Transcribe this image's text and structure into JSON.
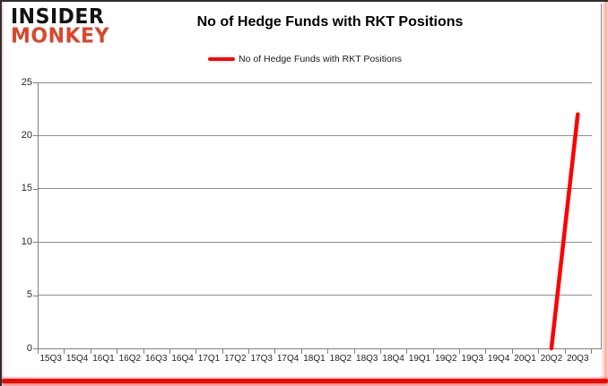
{
  "brand": {
    "line1": "INSIDER",
    "line2": "MONKEY",
    "color": "#d9472e"
  },
  "header": {
    "title": "No of Hedge Funds with RKT Positions"
  },
  "legend": {
    "label": "No of Hedge Funds with RKT Positions",
    "marker_color": "#fe0000"
  },
  "chart_data": {
    "type": "line",
    "title": "No of Hedge Funds with RKT Positions",
    "categories": [
      "15Q3",
      "15Q4",
      "16Q1",
      "16Q2",
      "16Q3",
      "16Q4",
      "17Q1",
      "17Q2",
      "17Q3",
      "17Q4",
      "18Q1",
      "18Q2",
      "18Q3",
      "18Q4",
      "19Q1",
      "19Q2",
      "19Q3",
      "19Q4",
      "20Q1",
      "20Q2",
      "20Q3"
    ],
    "series": [
      {
        "name": "No of Hedge Funds with RKT Positions",
        "color": "#fe0000",
        "values": [
          null,
          null,
          null,
          null,
          null,
          null,
          null,
          null,
          null,
          null,
          null,
          null,
          null,
          null,
          null,
          null,
          null,
          null,
          null,
          0,
          22
        ]
      }
    ],
    "xlabel": "",
    "ylabel": "",
    "ylim": [
      0,
      25
    ],
    "yticks": [
      0,
      5,
      10,
      15,
      20,
      25
    ],
    "grid": true,
    "legend_position": "top-center"
  },
  "colors": {
    "grid": "#8e8e8e",
    "axis": "#7f7f7f",
    "tick_label": "#262626",
    "title": "#000000",
    "logo_red": "#d9472e",
    "line_red": "#fe0000",
    "frame_glow": "#ec0900"
  }
}
